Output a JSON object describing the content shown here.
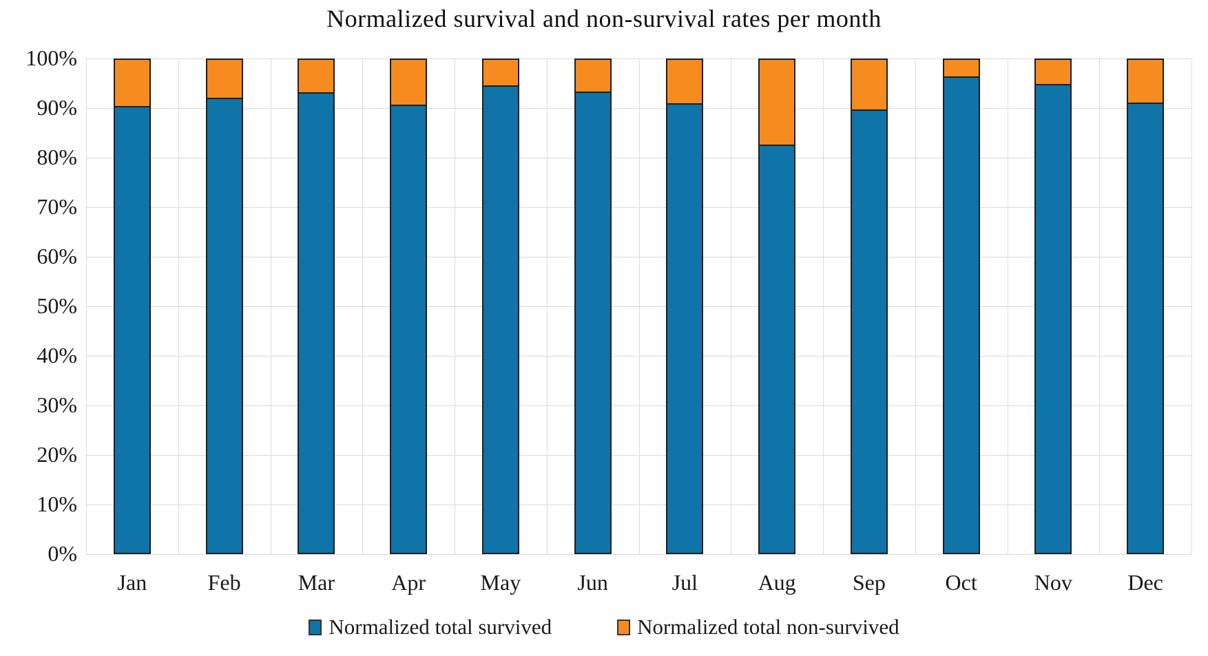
{
  "chart_data": {
    "type": "bar",
    "stacked": true,
    "normalized": true,
    "title": "Normalized survival and non-survival rates per month",
    "categories": [
      "Jan",
      "Feb",
      "Mar",
      "Apr",
      "May",
      "Jun",
      "Jul",
      "Aug",
      "Sep",
      "Oct",
      "Nov",
      "Dec"
    ],
    "series": [
      {
        "name": "Normalized total survived",
        "color": "#0F74A8",
        "values": [
          90.3,
          92.0,
          93.1,
          90.6,
          94.5,
          93.3,
          90.9,
          82.6,
          89.7,
          96.4,
          94.8,
          91.0
        ]
      },
      {
        "name": "Normalized total non-survived",
        "color": "#F68B1F",
        "values": [
          9.7,
          8.0,
          6.9,
          9.4,
          5.5,
          6.7,
          9.1,
          17.4,
          10.3,
          3.6,
          5.2,
          9.0
        ]
      }
    ],
    "xlabel": "",
    "ylabel": "",
    "ylim": [
      0,
      100
    ],
    "ytick_step": 10,
    "ytick_labels": [
      "0%",
      "10%",
      "20%",
      "30%",
      "40%",
      "50%",
      "60%",
      "70%",
      "80%",
      "90%",
      "100%"
    ],
    "grid": {
      "horizontal": true,
      "vertical": true,
      "color": "#d9d9d9"
    },
    "legend_position": "bottom",
    "bar_border_color": "#1f1f1f"
  }
}
